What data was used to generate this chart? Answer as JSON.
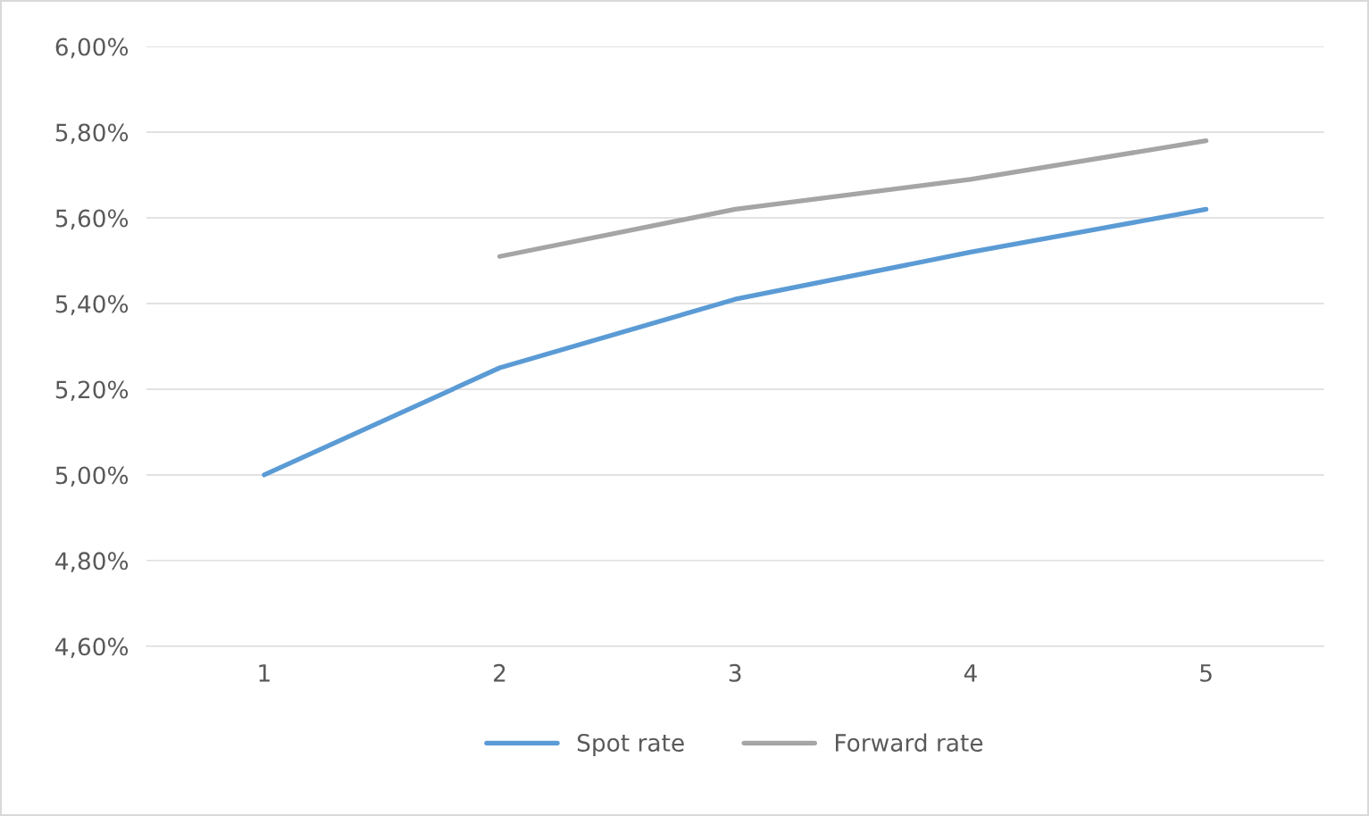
{
  "chart_data": {
    "type": "line",
    "categories": [
      "1",
      "2",
      "3",
      "4",
      "5"
    ],
    "series": [
      {
        "name": "Spot rate",
        "color": "#5b9bd5",
        "values": [
          5.0,
          5.25,
          5.41,
          5.52,
          5.62
        ]
      },
      {
        "name": "Forward rate",
        "color": "#a5a5a5",
        "values": [
          null,
          5.51,
          5.62,
          5.69,
          5.78
        ]
      }
    ],
    "ylim": [
      4.6,
      6.0
    ],
    "yticks": [
      {
        "value": 4.6,
        "label": "4,60%"
      },
      {
        "value": 4.8,
        "label": "4,80%"
      },
      {
        "value": 5.0,
        "label": "5,00%"
      },
      {
        "value": 5.2,
        "label": "5,20%"
      },
      {
        "value": 5.4,
        "label": "5,40%"
      },
      {
        "value": 5.6,
        "label": "5,60%"
      },
      {
        "value": 5.8,
        "label": "5,80%"
      },
      {
        "value": 6.0,
        "label": "6,00%"
      }
    ],
    "grid": "y",
    "legend": "bottom",
    "marker": "none",
    "line_style": "solid"
  }
}
